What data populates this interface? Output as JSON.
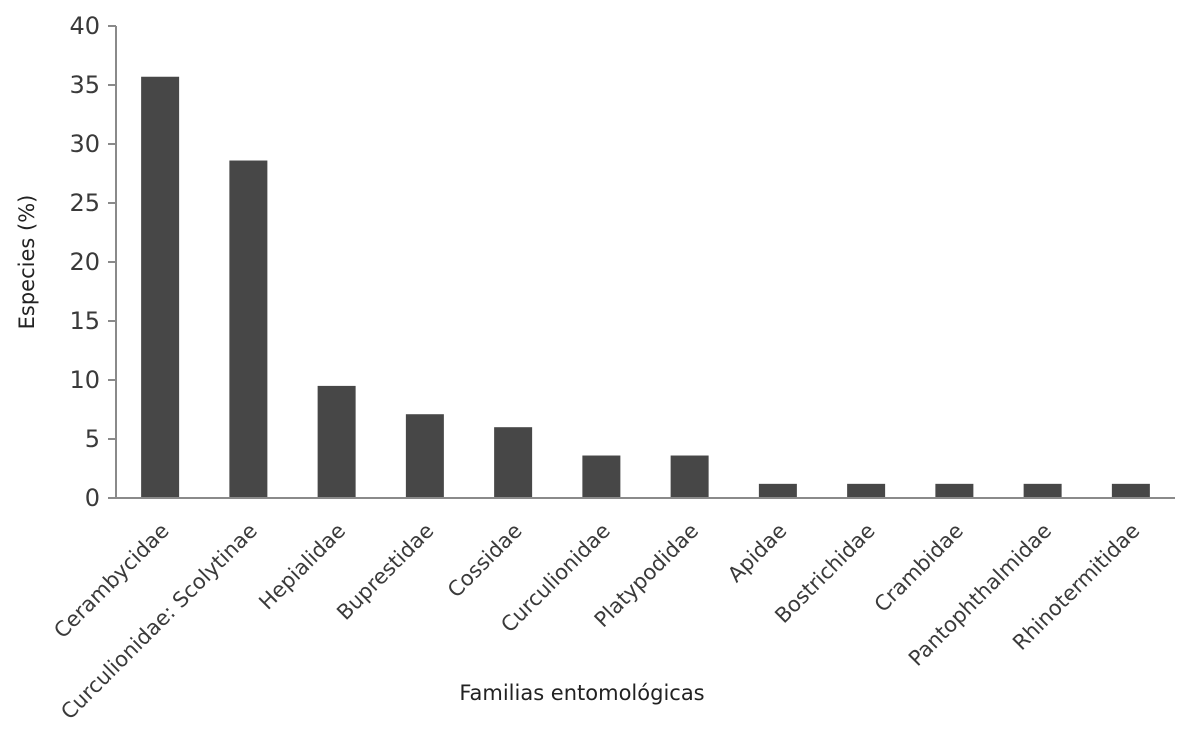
{
  "chart_data": {
    "type": "bar",
    "categories": [
      "Cerambycidae",
      "Curculionidae: Scolytinae",
      "Hepialidae",
      "Buprestidae",
      "Cossidae",
      "Curculionidae",
      "Platypodidae",
      "Apidae",
      "Bostrichidae",
      "Crambidae",
      "Pantophthalmidae",
      "Rhinotermitidae"
    ],
    "values": [
      35.7,
      28.6,
      9.5,
      7.1,
      6.0,
      3.6,
      3.6,
      1.2,
      1.2,
      1.2,
      1.2,
      1.2
    ],
    "xlabel": "Familias entomológicas",
    "ylabel": "Especies (%)",
    "ylim": [
      0,
      40
    ],
    "yticks": [
      0,
      5,
      10,
      15,
      20,
      25,
      30,
      35,
      40
    ],
    "grid": false,
    "bar_color": "#474747"
  }
}
